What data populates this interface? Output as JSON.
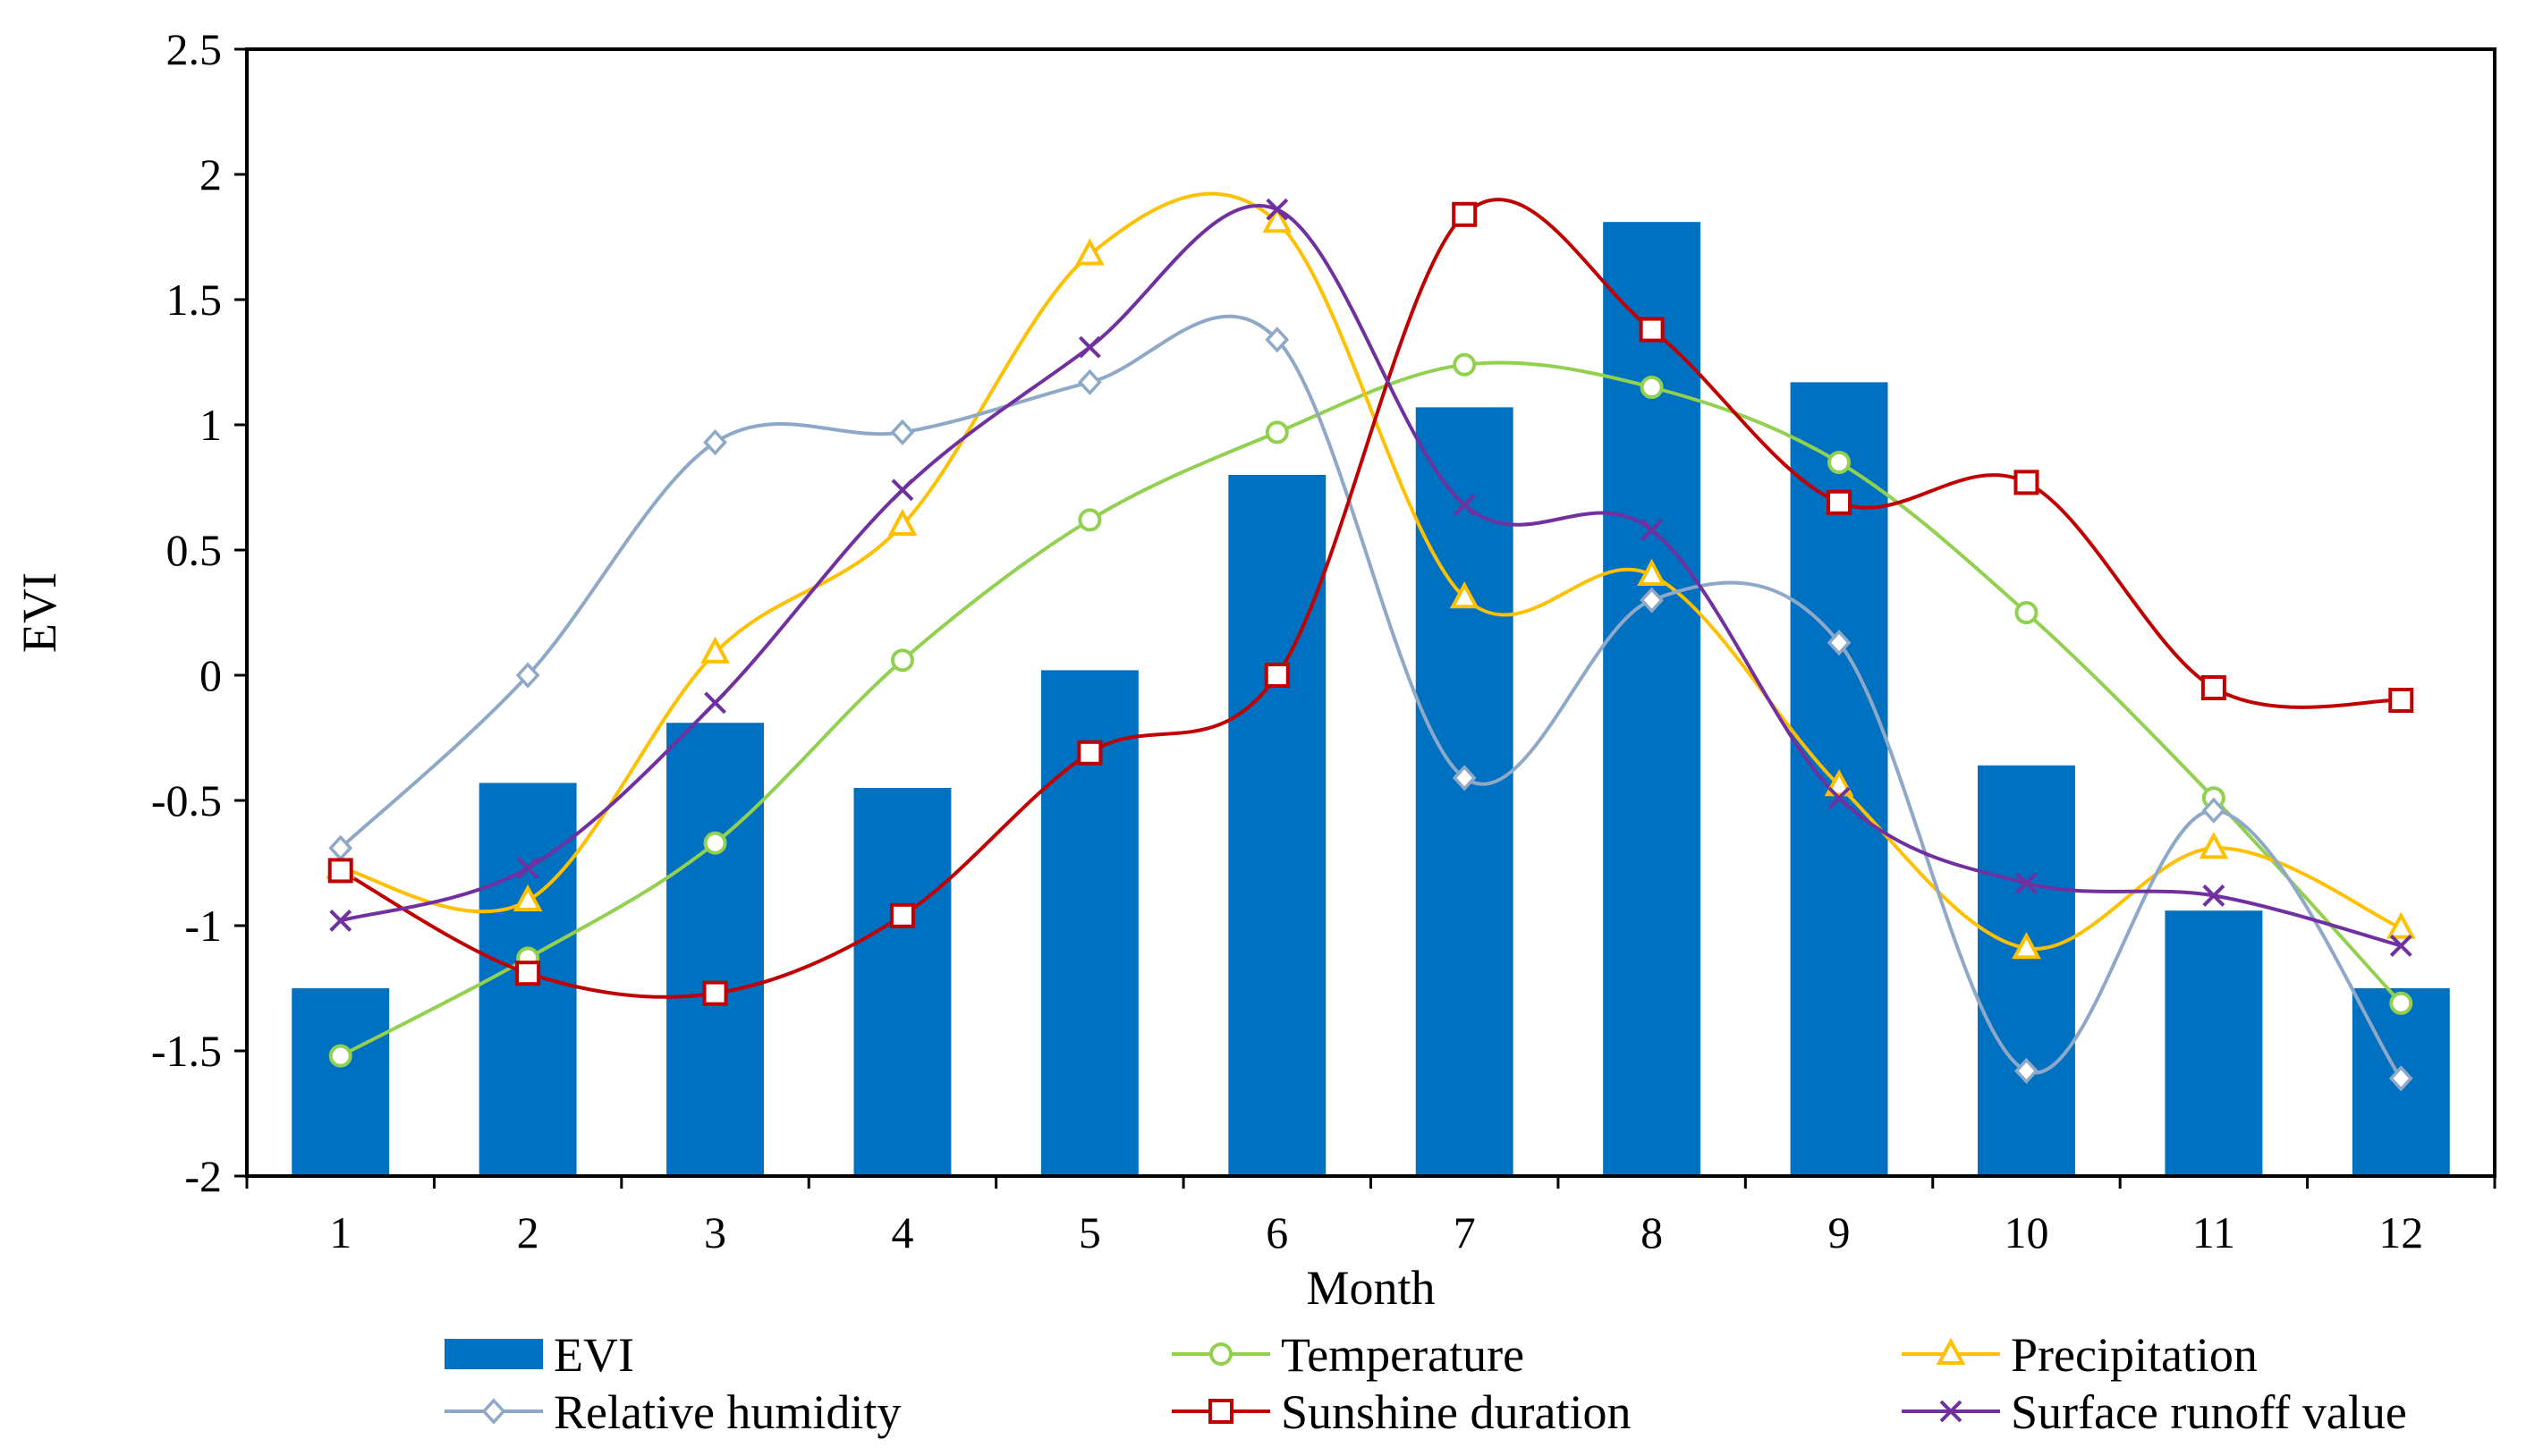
{
  "chart_data": {
    "type": "bar",
    "categories": [
      "1",
      "2",
      "3",
      "4",
      "5",
      "6",
      "7",
      "8",
      "9",
      "10",
      "11",
      "12"
    ],
    "xlabel": "Month",
    "ylabel": "EVI",
    "ylim": [
      -2,
      2.5
    ],
    "yticks": [
      "2.5",
      "2",
      "1.5",
      "1",
      "0.5",
      "0",
      "-0.5",
      "-1",
      "-1.5",
      "-2"
    ],
    "ytick_values": [
      2.5,
      2,
      1.5,
      1,
      0.5,
      0,
      -0.5,
      -1,
      -1.5,
      -2
    ],
    "grid": false,
    "legend_position": "bottom",
    "series": [
      {
        "name": "EVI",
        "kind": "bar",
        "color": "#0070C0",
        "values": [
          -1.25,
          -0.43,
          -0.19,
          -0.45,
          0.02,
          0.8,
          1.07,
          1.81,
          1.17,
          -0.36,
          -0.94,
          -1.25
        ]
      },
      {
        "name": "Temperature",
        "kind": "line",
        "marker": "circle",
        "color": "#92D050",
        "values": [
          -1.52,
          -1.13,
          -0.67,
          0.06,
          0.62,
          0.97,
          1.24,
          1.15,
          0.85,
          0.25,
          -0.49,
          -1.31
        ]
      },
      {
        "name": "Precipitation",
        "kind": "line",
        "marker": "triangle",
        "color": "#FFC000",
        "values": [
          -0.77,
          -0.9,
          0.09,
          0.6,
          1.68,
          1.81,
          0.31,
          0.4,
          -0.44,
          -1.09,
          -0.69,
          -1.01
        ]
      },
      {
        "name": "Relative humidity",
        "kind": "line",
        "marker": "diamond",
        "color": "#8EA9C8",
        "values": [
          -0.69,
          0.0,
          0.93,
          0.97,
          1.17,
          1.34,
          -0.41,
          0.3,
          0.13,
          -1.58,
          -0.54,
          -1.61
        ]
      },
      {
        "name": "Sunshine duration",
        "kind": "line",
        "marker": "square",
        "color": "#C00000",
        "values": [
          -0.78,
          -1.19,
          -1.27,
          -0.96,
          -0.31,
          0.0,
          1.84,
          1.38,
          0.69,
          0.77,
          -0.05,
          -0.1
        ]
      },
      {
        "name": "Surface runoff value",
        "kind": "line",
        "marker": "cross",
        "color": "#7030A0",
        "values": [
          -0.98,
          -0.77,
          -0.11,
          0.74,
          1.31,
          1.86,
          0.68,
          0.58,
          -0.49,
          -0.83,
          -0.88,
          -1.08
        ]
      }
    ]
  }
}
